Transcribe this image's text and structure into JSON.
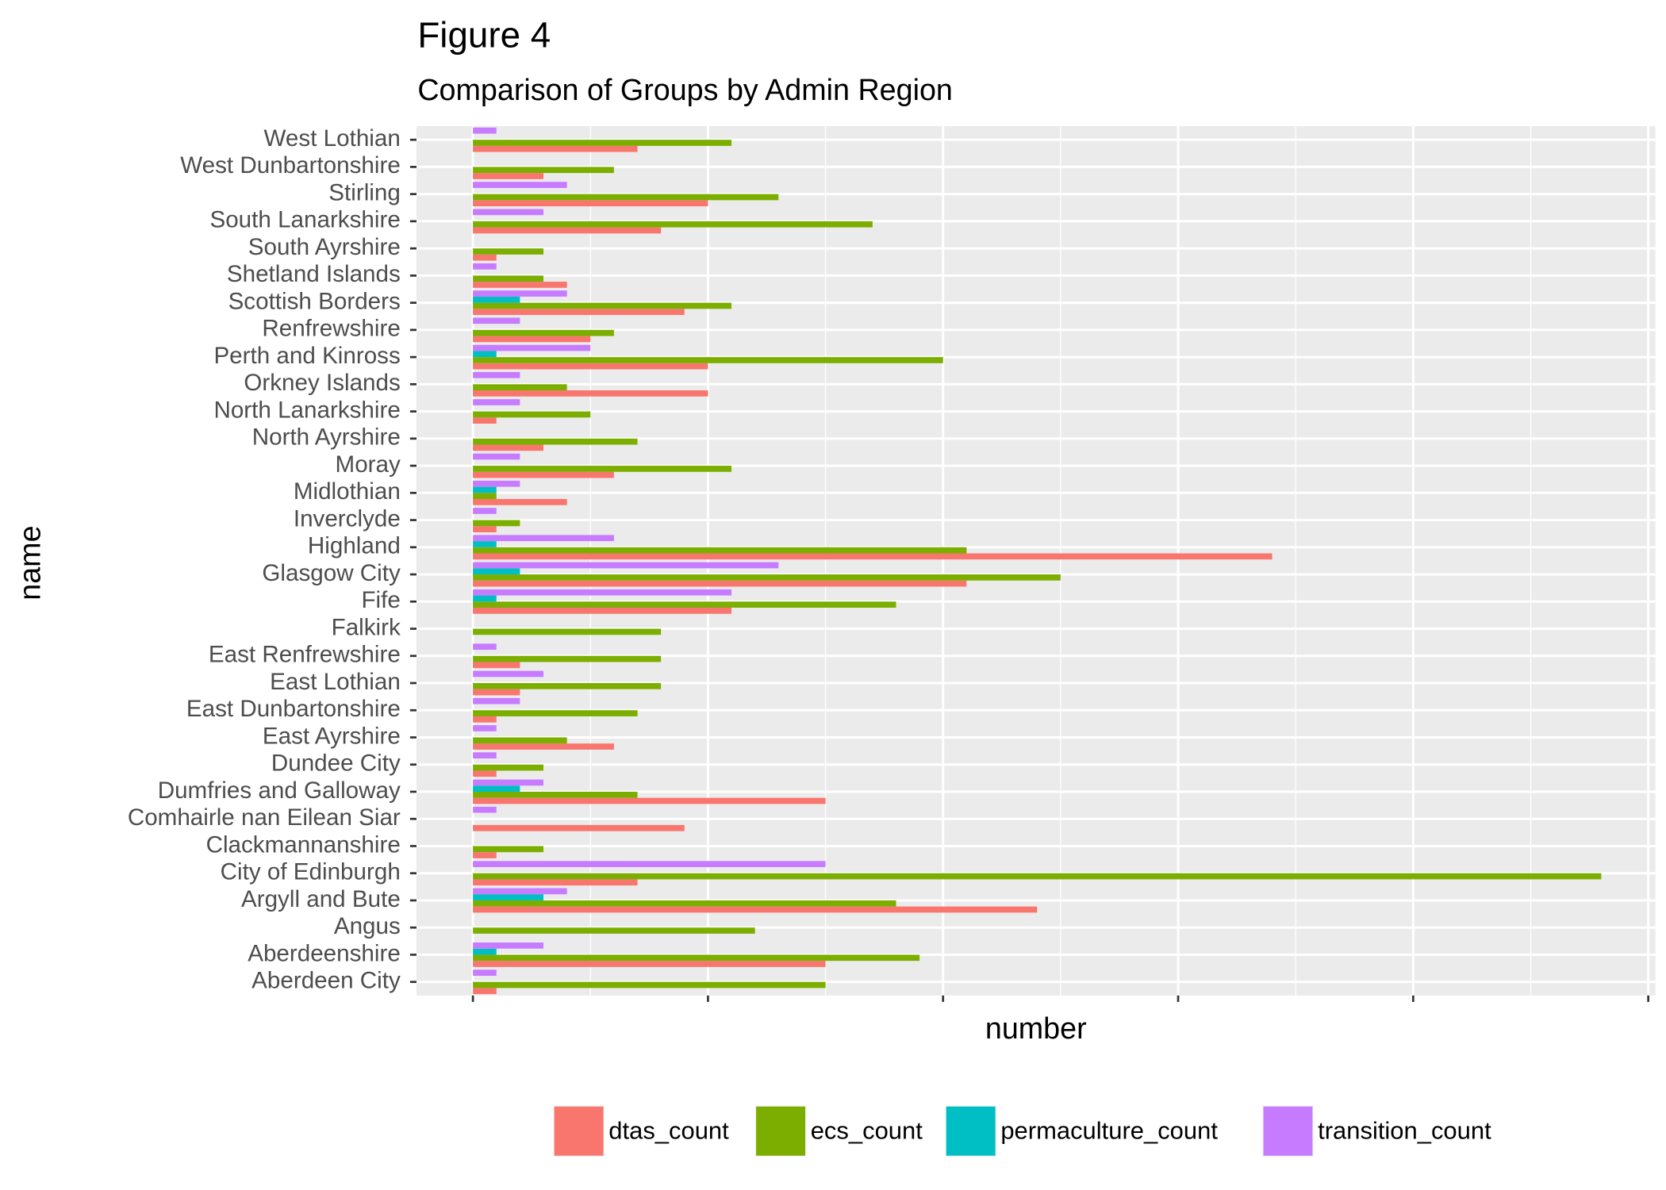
{
  "chart_data": {
    "type": "bar",
    "orientation": "horizontal",
    "title": "Figure 4",
    "subtitle": "Comparison of Groups by Admin Region",
    "x_label": "number",
    "y_label": "name",
    "categories": [
      "West Lothian",
      "West Dunbartonshire",
      "Stirling",
      "South Lanarkshire",
      "South Ayrshire",
      "Shetland Islands",
      "Scottish Borders",
      "Renfrewshire",
      "Perth and Kinross",
      "Orkney Islands",
      "North Lanarkshire",
      "North Ayrshire",
      "Moray",
      "Midlothian",
      "Inverclyde",
      "Highland",
      "Glasgow City",
      "Fife",
      "Falkirk",
      "East Renfrewshire",
      "East Lothian",
      "East Dunbartonshire",
      "East Ayrshire",
      "Dundee City",
      "Dumfries and Galloway",
      "Comhairle nan Eilean Siar",
      "Clackmannanshire",
      "City of Edinburgh",
      "Argyll and Bute",
      "Angus",
      "Aberdeenshire",
      "Aberdeen City"
    ],
    "series": [
      {
        "name": "dtas_count",
        "color": "#F8766D",
        "values": [
          7,
          3,
          10,
          8,
          1,
          4,
          9,
          5,
          10,
          10,
          1,
          3,
          6,
          4,
          1,
          34,
          21,
          11,
          0,
          2,
          2,
          1,
          6,
          1,
          15,
          9,
          1,
          7,
          24,
          0,
          15,
          1
        ]
      },
      {
        "name": "ecs_count",
        "color": "#7CAE00",
        "values": [
          11,
          6,
          13,
          17,
          3,
          3,
          11,
          6,
          20,
          4,
          5,
          7,
          11,
          1,
          2,
          21,
          25,
          18,
          8,
          8,
          8,
          7,
          4,
          3,
          7,
          0,
          3,
          48,
          18,
          12,
          19,
          15
        ]
      },
      {
        "name": "permaculture_count",
        "color": "#00BFC4",
        "values": [
          0,
          0,
          0,
          0,
          0,
          0,
          2,
          0,
          1,
          0,
          0,
          0,
          0,
          1,
          0,
          1,
          2,
          1,
          0,
          0,
          0,
          0,
          0,
          0,
          2,
          0,
          0,
          0,
          3,
          0,
          1,
          0
        ]
      },
      {
        "name": "transition_count",
        "color": "#C77CFF",
        "values": [
          1,
          0,
          4,
          3,
          0,
          1,
          4,
          2,
          5,
          2,
          2,
          0,
          2,
          2,
          1,
          6,
          13,
          11,
          0,
          1,
          3,
          2,
          1,
          1,
          3,
          1,
          0,
          15,
          4,
          0,
          3,
          1
        ]
      }
    ],
    "xlim": [
      -2.4,
      50.3
    ],
    "xticks": [
      0,
      10,
      20,
      30,
      40,
      50
    ],
    "grid": true,
    "legend_position": "bottom"
  }
}
